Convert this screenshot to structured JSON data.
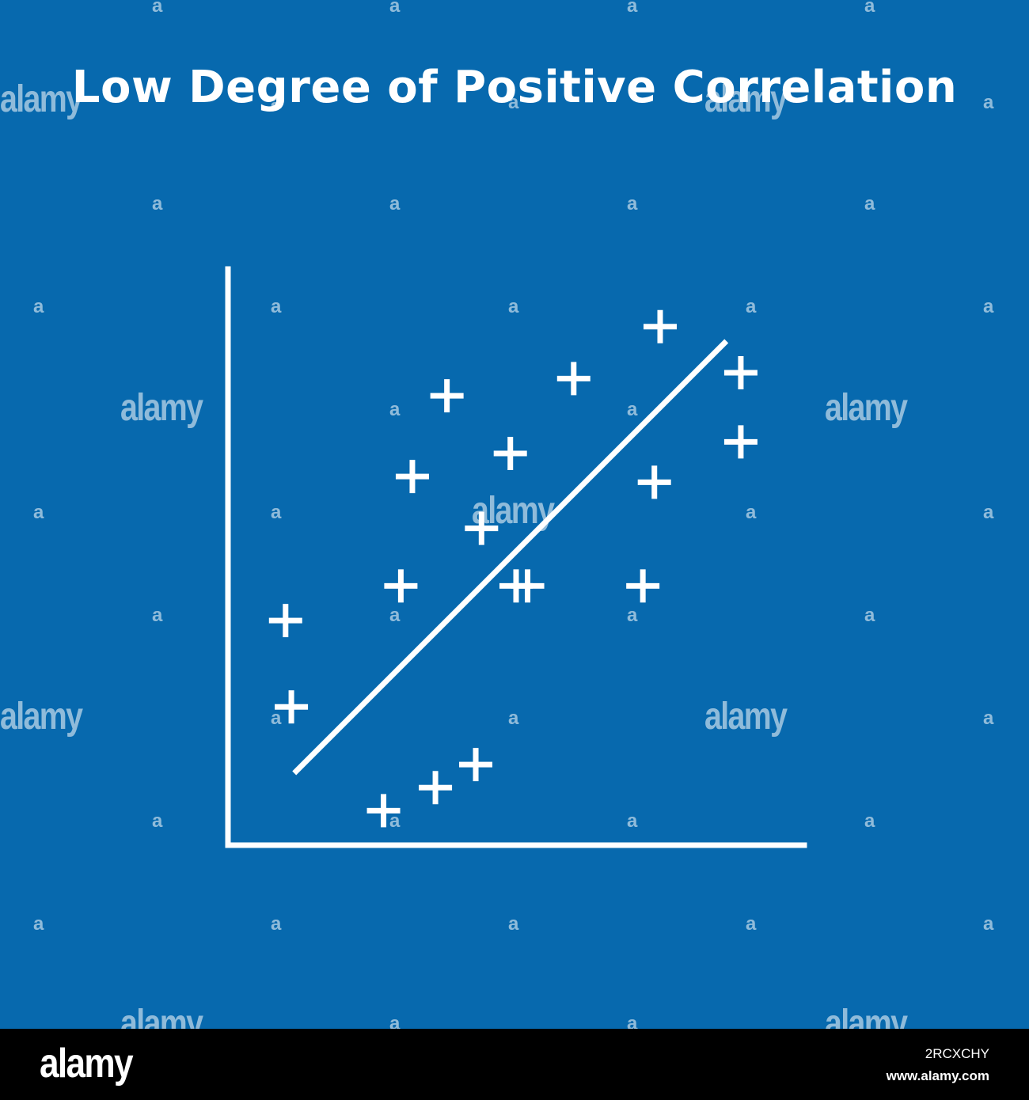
{
  "background_color": "#0769ae",
  "foreground_color": "#ffffff",
  "chart_data": {
    "type": "scatter",
    "title": "Low Degree of Positive Correlation",
    "xlabel": "",
    "ylabel": "",
    "grid": false,
    "legend": "none",
    "xlim": [
      0,
      100
    ],
    "ylim": [
      0,
      100
    ],
    "marker": "plus",
    "series": [
      {
        "x": [
          10,
          11,
          27,
          32,
          43,
          38,
          36,
          49,
          52,
          44,
          50,
          60,
          72,
          74,
          75,
          89,
          89,
          30
        ],
        "y": [
          39,
          24,
          6,
          64,
          14,
          78,
          10,
          68,
          45,
          55,
          45,
          81,
          45,
          63,
          90,
          82,
          70,
          45
        ]
      }
    ],
    "trend_line": {
      "x": [
        11.5,
        86.5
      ],
      "y": [
        12.5,
        87.5
      ]
    }
  },
  "watermark": {
    "text": "alamy",
    "small_text": "a"
  },
  "footer": {
    "logo": "alamy",
    "image_id": "2RCXCHY",
    "site": "www.alamy.com"
  }
}
